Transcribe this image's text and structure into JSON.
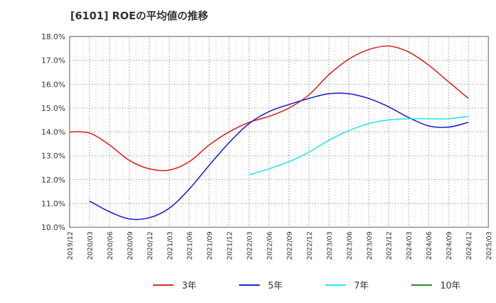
{
  "chart_data": {
    "type": "line",
    "title": "[6101]  ROEの平均値の推移",
    "x": [
      "2019/12",
      "2020/03",
      "2020/06",
      "2020/09",
      "2020/12",
      "2021/03",
      "2021/06",
      "2021/09",
      "2021/12",
      "2022/03",
      "2022/06",
      "2022/09",
      "2022/12",
      "2023/03",
      "2023/06",
      "2023/09",
      "2023/12",
      "2024/03",
      "2024/06",
      "2024/09",
      "2024/12",
      "2025/03"
    ],
    "yticks": [
      "10.0%",
      "11.0%",
      "12.0%",
      "13.0%",
      "14.0%",
      "15.0%",
      "16.0%",
      "17.0%",
      "18.0%"
    ],
    "ylim": [
      10.0,
      18.0
    ],
    "xlabel": "",
    "ylabel": "",
    "grid": true,
    "legend_position": "bottom",
    "series": [
      {
        "name": "3年",
        "color": "#dd2222",
        "values": [
          14.0,
          13.95,
          13.45,
          12.8,
          12.45,
          12.4,
          12.75,
          13.45,
          14.0,
          14.4,
          14.65,
          15.0,
          15.55,
          16.4,
          17.05,
          17.45,
          17.6,
          17.35,
          16.8,
          16.1,
          15.4,
          null
        ]
      },
      {
        "name": "5年",
        "color": "#1f1fcc",
        "values": [
          null,
          11.1,
          10.65,
          10.35,
          10.4,
          10.8,
          11.6,
          12.6,
          13.55,
          14.35,
          14.85,
          15.15,
          15.4,
          15.6,
          15.6,
          15.4,
          15.05,
          14.6,
          14.25,
          14.2,
          14.4,
          null
        ]
      },
      {
        "name": "7年",
        "color": "#22e5ee",
        "values": [
          null,
          null,
          null,
          null,
          null,
          null,
          null,
          null,
          null,
          12.2,
          12.45,
          12.75,
          13.15,
          13.65,
          14.05,
          14.35,
          14.5,
          14.55,
          14.55,
          14.55,
          14.65,
          null
        ]
      },
      {
        "name": "10年",
        "color": "#228822",
        "values": [
          null,
          null,
          null,
          null,
          null,
          null,
          null,
          null,
          null,
          null,
          null,
          null,
          null,
          null,
          null,
          null,
          null,
          null,
          null,
          null,
          null,
          null
        ]
      }
    ]
  }
}
